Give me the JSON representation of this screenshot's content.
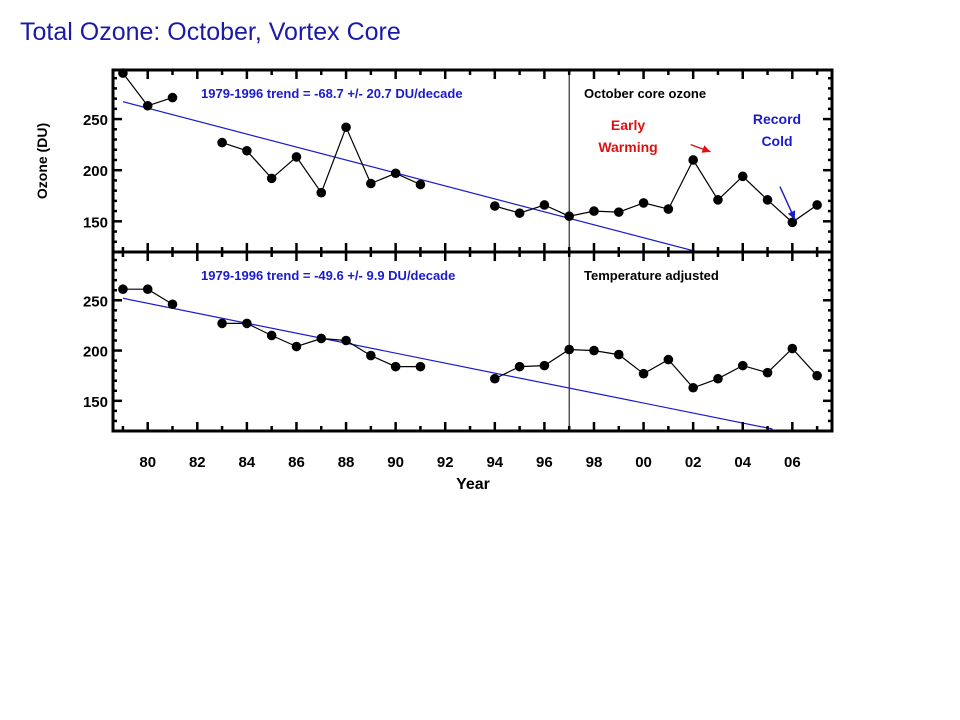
{
  "slide": {
    "title": "Total Ozone: October, Vortex Core"
  },
  "chart_data": {
    "type": "line",
    "x_label": "Year",
    "y_label": "Ozone (DU)",
    "x_ticks": [
      1980,
      1982,
      1984,
      1986,
      1988,
      1990,
      1992,
      1994,
      1996,
      1998,
      2000,
      2002,
      2004,
      2006
    ],
    "x_tick_labels": [
      "80",
      "82",
      "84",
      "86",
      "88",
      "90",
      "92",
      "94",
      "96",
      "98",
      "00",
      "02",
      "04",
      "06"
    ],
    "xlim": [
      1978.6,
      2007.6
    ],
    "divider_year": 1997,
    "panels": [
      {
        "label": "October core ozone",
        "trend_label": "1979-1996 trend = -68.7 +/- 20.7 DU/decade",
        "ylim": [
          120,
          298
        ],
        "y_ticks": [
          150,
          200,
          250
        ],
        "y_tick_labels": [
          "150",
          "200",
          "250"
        ],
        "trend_line": {
          "x": [
            1979,
            2002.2
          ],
          "y": [
            267,
            120
          ]
        },
        "series": [
          {
            "x": [
              1979,
              1980,
              1981
            ],
            "y": [
              295,
              263,
              271
            ]
          },
          {
            "x": [
              1983,
              1984,
              1985,
              1986,
              1987,
              1988,
              1989,
              1990,
              1991
            ],
            "y": [
              227,
              219,
              192,
              213,
              178,
              242,
              187,
              197,
              186
            ]
          },
          {
            "x": [
              1994,
              1995,
              1996,
              1997,
              1998,
              1999,
              2000,
              2001,
              2002,
              2003,
              2004,
              2005,
              2006,
              2007
            ],
            "y": [
              165,
              158,
              166,
              155,
              160,
              159,
              168,
              162,
              210,
              171,
              194,
              171,
              149,
              166
            ]
          }
        ],
        "annotations": [
          {
            "text_lines": [
              "Early",
              "Warming"
            ],
            "color": "#e01010",
            "arrow_from": [
              2001.9,
              225
            ],
            "arrow_to": [
              2002.7,
              218
            ]
          },
          {
            "text_lines": [
              "Record",
              "Cold"
            ],
            "color": "#1a1ad0",
            "arrow_from": [
              2005.5,
              184
            ],
            "arrow_to": [
              2006.1,
              152
            ]
          }
        ]
      },
      {
        "label": "Temperature adjusted",
        "trend_label": "1979-1996 trend = -49.6 +/-  9.9 DU/decade",
        "ylim": [
          120,
          298
        ],
        "y_ticks": [
          150,
          200,
          250
        ],
        "y_tick_labels": [
          "150",
          "200",
          "250"
        ],
        "trend_line": {
          "x": [
            1979,
            2005.2
          ],
          "y": [
            252,
            122
          ]
        },
        "series": [
          {
            "x": [
              1979,
              1980,
              1981
            ],
            "y": [
              261,
              261,
              246
            ]
          },
          {
            "x": [
              1983,
              1984,
              1985,
              1986,
              1987,
              1988,
              1989,
              1990,
              1991
            ],
            "y": [
              227,
              227,
              215,
              204,
              212,
              210,
              195,
              184,
              184
            ]
          },
          {
            "x": [
              1994,
              1995,
              1996,
              1997,
              1998,
              1999,
              2000,
              2001,
              2002,
              2003,
              2004,
              2005,
              2006,
              2007
            ],
            "y": [
              172,
              184,
              185,
              201,
              200,
              196,
              177,
              191,
              163,
              172,
              185,
              178,
              202,
              175
            ]
          }
        ],
        "annotations": []
      }
    ],
    "colors": {
      "trend": "#1a1ad0",
      "trend_label": "#1a1ad0",
      "data": "#000000",
      "early_warming": "#e01010",
      "record_cold": "#1a1ad0"
    }
  }
}
